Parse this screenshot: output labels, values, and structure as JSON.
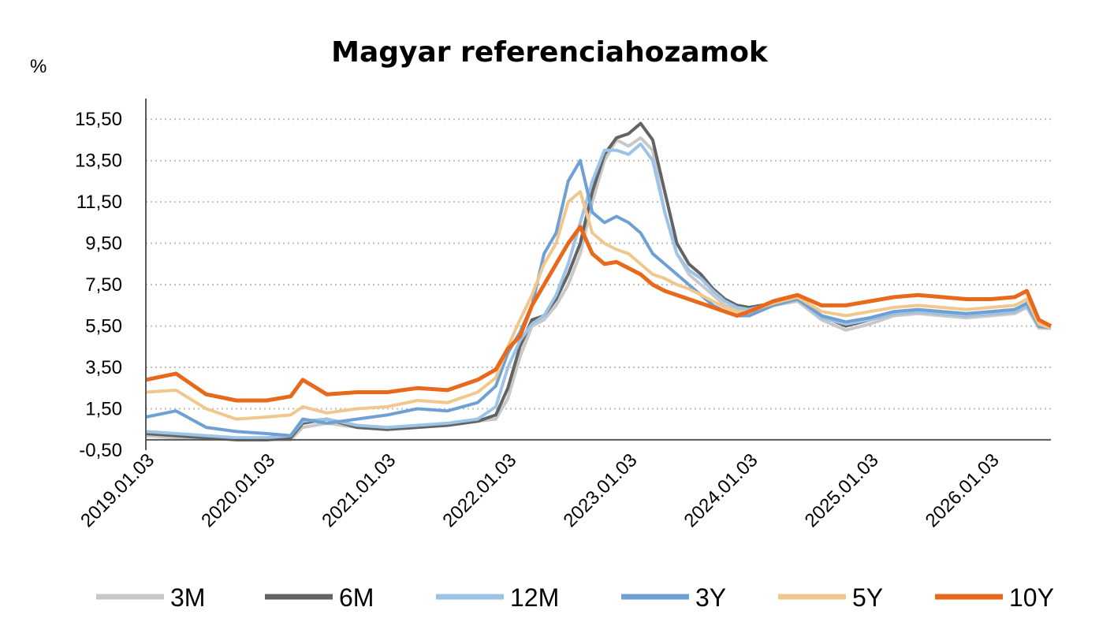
{
  "chart_data": {
    "type": "line",
    "title": "Magyar referenciahozamok",
    "ylabel": "%",
    "xlabel": "",
    "ylim": [
      -0.5,
      16.5
    ],
    "yticks": [
      "-0,50",
      "1,50",
      "3,50",
      "5,50",
      "7,50",
      "9,50",
      "11,50",
      "13,50",
      "15,50"
    ],
    "ytick_values": [
      -0.5,
      1.5,
      3.5,
      5.5,
      7.5,
      9.5,
      11.5,
      13.5,
      15.5
    ],
    "xticks": [
      "2019.01.03",
      "2020.01.03",
      "2021.01.03",
      "2022.01.03",
      "2023.01.03",
      "2024.01.03",
      "2025.01.03",
      "2026.01.03"
    ],
    "xtick_values": [
      2019.0,
      2020.0,
      2021.0,
      2022.0,
      2023.0,
      2024.0,
      2025.0,
      2026.0
    ],
    "xlim": [
      2019.0,
      2026.5
    ],
    "grid": true,
    "legend_position": "bottom",
    "series": [
      {
        "name": "3M",
        "color": "#c8c8c8",
        "x": [
          2019.0,
          2019.25,
          2019.5,
          2019.75,
          2020.0,
          2020.2,
          2020.3,
          2020.5,
          2020.75,
          2021.0,
          2021.25,
          2021.5,
          2021.75,
          2021.9,
          2022.0,
          2022.1,
          2022.2,
          2022.3,
          2022.4,
          2022.5,
          2022.6,
          2022.7,
          2022.8,
          2022.9,
          2023.0,
          2023.1,
          2023.2,
          2023.3,
          2023.4,
          2023.5,
          2023.6,
          2023.7,
          2023.8,
          2023.9,
          2024.0,
          2024.2,
          2024.4,
          2024.6,
          2024.8,
          2025.0,
          2025.2,
          2025.4,
          2025.6,
          2025.8,
          2026.0,
          2026.2,
          2026.3,
          2026.4,
          2026.5
        ],
        "y": [
          0.2,
          0.1,
          0.1,
          0.0,
          0.0,
          0.0,
          0.6,
          0.8,
          0.6,
          0.5,
          0.6,
          0.7,
          0.9,
          1.0,
          2.0,
          4.0,
          5.5,
          5.8,
          6.5,
          7.5,
          9.0,
          11.5,
          13.5,
          14.5,
          14.2,
          14.6,
          14.0,
          11.0,
          9.0,
          8.0,
          7.5,
          7.0,
          6.5,
          6.3,
          6.2,
          6.5,
          6.7,
          5.8,
          5.3,
          5.6,
          6.0,
          6.1,
          6.0,
          5.9,
          6.0,
          6.1,
          6.4,
          5.4,
          5.4
        ]
      },
      {
        "name": "6M",
        "color": "#636363",
        "x": [
          2019.0,
          2019.25,
          2019.5,
          2019.75,
          2020.0,
          2020.2,
          2020.3,
          2020.5,
          2020.75,
          2021.0,
          2021.25,
          2021.5,
          2021.75,
          2021.9,
          2022.0,
          2022.1,
          2022.2,
          2022.3,
          2022.4,
          2022.5,
          2022.6,
          2022.7,
          2022.8,
          2022.9,
          2023.0,
          2023.1,
          2023.2,
          2023.3,
          2023.4,
          2023.5,
          2023.6,
          2023.7,
          2023.8,
          2023.9,
          2024.0,
          2024.2,
          2024.4,
          2024.6,
          2024.8,
          2025.0,
          2025.2,
          2025.4,
          2025.6,
          2025.8,
          2026.0,
          2026.2,
          2026.3,
          2026.4,
          2026.5
        ],
        "y": [
          0.3,
          0.2,
          0.1,
          0.0,
          0.0,
          0.1,
          0.8,
          1.0,
          0.6,
          0.5,
          0.6,
          0.7,
          0.9,
          1.2,
          2.5,
          4.5,
          5.8,
          6.0,
          6.8,
          8.0,
          9.5,
          12.0,
          13.8,
          14.6,
          14.8,
          15.3,
          14.5,
          12.0,
          9.5,
          8.5,
          8.0,
          7.3,
          6.8,
          6.5,
          6.4,
          6.6,
          6.8,
          6.0,
          5.5,
          5.8,
          6.1,
          6.2,
          6.1,
          6.0,
          6.1,
          6.2,
          6.5,
          5.5,
          5.5
        ]
      },
      {
        "name": "12M",
        "color": "#9dc3e6",
        "x": [
          2019.0,
          2019.25,
          2019.5,
          2019.75,
          2020.0,
          2020.2,
          2020.3,
          2020.5,
          2020.75,
          2021.0,
          2021.25,
          2021.5,
          2021.75,
          2021.9,
          2022.0,
          2022.1,
          2022.2,
          2022.3,
          2022.4,
          2022.5,
          2022.6,
          2022.7,
          2022.8,
          2022.9,
          2023.0,
          2023.1,
          2023.2,
          2023.3,
          2023.4,
          2023.5,
          2023.6,
          2023.7,
          2023.8,
          2023.9,
          2024.0,
          2024.2,
          2024.4,
          2024.6,
          2024.8,
          2025.0,
          2025.2,
          2025.4,
          2025.6,
          2025.8,
          2026.0,
          2026.2,
          2026.3,
          2026.4,
          2026.5
        ],
        "y": [
          0.4,
          0.3,
          0.2,
          0.1,
          0.1,
          0.2,
          0.9,
          1.0,
          0.7,
          0.6,
          0.7,
          0.8,
          1.0,
          1.6,
          3.5,
          4.8,
          5.6,
          6.0,
          7.0,
          8.5,
          10.5,
          12.5,
          14.0,
          14.0,
          13.8,
          14.3,
          13.5,
          11.0,
          9.0,
          8.2,
          7.8,
          7.2,
          6.7,
          6.4,
          6.3,
          6.6,
          6.8,
          5.9,
          5.6,
          5.8,
          6.1,
          6.2,
          6.1,
          6.0,
          6.1,
          6.2,
          6.5,
          5.5,
          5.4
        ]
      },
      {
        "name": "3Y",
        "color": "#6fa0d3",
        "x": [
          2019.0,
          2019.25,
          2019.5,
          2019.75,
          2020.0,
          2020.2,
          2020.3,
          2020.5,
          2020.75,
          2021.0,
          2021.25,
          2021.5,
          2021.75,
          2021.9,
          2022.0,
          2022.1,
          2022.2,
          2022.3,
          2022.4,
          2022.5,
          2022.6,
          2022.7,
          2022.8,
          2022.9,
          2023.0,
          2023.1,
          2023.2,
          2023.3,
          2023.4,
          2023.5,
          2023.6,
          2023.7,
          2023.8,
          2023.9,
          2024.0,
          2024.2,
          2024.4,
          2024.6,
          2024.8,
          2025.0,
          2025.2,
          2025.4,
          2025.6,
          2025.8,
          2026.0,
          2026.2,
          2026.3,
          2026.4,
          2026.5
        ],
        "y": [
          1.1,
          1.4,
          0.6,
          0.4,
          0.3,
          0.2,
          1.0,
          0.8,
          1.0,
          1.2,
          1.5,
          1.4,
          1.8,
          2.6,
          4.2,
          5.2,
          6.5,
          9.0,
          10.0,
          12.5,
          13.5,
          11.0,
          10.5,
          10.8,
          10.5,
          10.0,
          9.0,
          8.5,
          8.0,
          7.5,
          7.0,
          6.5,
          6.2,
          6.0,
          6.0,
          6.5,
          6.8,
          6.0,
          5.7,
          5.9,
          6.2,
          6.3,
          6.2,
          6.1,
          6.2,
          6.3,
          6.6,
          5.5,
          5.4
        ]
      },
      {
        "name": "5Y",
        "color": "#f0c88e",
        "x": [
          2019.0,
          2019.25,
          2019.5,
          2019.75,
          2020.0,
          2020.2,
          2020.3,
          2020.5,
          2020.75,
          2021.0,
          2021.25,
          2021.5,
          2021.75,
          2021.9,
          2022.0,
          2022.1,
          2022.2,
          2022.3,
          2022.4,
          2022.5,
          2022.6,
          2022.7,
          2022.8,
          2022.9,
          2023.0,
          2023.1,
          2023.2,
          2023.3,
          2023.4,
          2023.5,
          2023.6,
          2023.7,
          2023.8,
          2023.9,
          2024.0,
          2024.2,
          2024.4,
          2024.6,
          2024.8,
          2025.0,
          2025.2,
          2025.4,
          2025.6,
          2025.8,
          2026.0,
          2026.2,
          2026.3,
          2026.4,
          2026.5
        ],
        "y": [
          2.3,
          2.4,
          1.5,
          1.0,
          1.1,
          1.2,
          1.6,
          1.3,
          1.5,
          1.6,
          1.9,
          1.8,
          2.3,
          3.0,
          4.5,
          5.8,
          7.0,
          8.5,
          9.5,
          11.5,
          12.0,
          10.0,
          9.5,
          9.2,
          9.0,
          8.5,
          8.0,
          7.8,
          7.5,
          7.3,
          7.0,
          6.7,
          6.4,
          6.2,
          6.2,
          6.6,
          6.9,
          6.2,
          6.0,
          6.2,
          6.4,
          6.5,
          6.4,
          6.3,
          6.4,
          6.5,
          6.8,
          5.6,
          5.4
        ]
      },
      {
        "name": "10Y",
        "color": "#e8681c",
        "x": [
          2019.0,
          2019.25,
          2019.5,
          2019.75,
          2020.0,
          2020.2,
          2020.3,
          2020.5,
          2020.75,
          2021.0,
          2021.25,
          2021.5,
          2021.75,
          2021.9,
          2022.0,
          2022.1,
          2022.2,
          2022.3,
          2022.4,
          2022.5,
          2022.6,
          2022.7,
          2022.8,
          2022.9,
          2023.0,
          2023.1,
          2023.2,
          2023.3,
          2023.4,
          2023.5,
          2023.6,
          2023.7,
          2023.8,
          2023.9,
          2024.0,
          2024.2,
          2024.4,
          2024.6,
          2024.8,
          2025.0,
          2025.2,
          2025.4,
          2025.6,
          2025.8,
          2026.0,
          2026.2,
          2026.3,
          2026.4,
          2026.5
        ],
        "y": [
          2.9,
          3.2,
          2.2,
          1.9,
          1.9,
          2.1,
          2.9,
          2.2,
          2.3,
          2.3,
          2.5,
          2.4,
          2.9,
          3.4,
          4.4,
          5.0,
          6.5,
          7.5,
          8.5,
          9.5,
          10.3,
          9.0,
          8.5,
          8.6,
          8.3,
          8.0,
          7.5,
          7.2,
          7.0,
          6.8,
          6.6,
          6.4,
          6.2,
          6.0,
          6.2,
          6.7,
          7.0,
          6.5,
          6.5,
          6.7,
          6.9,
          7.0,
          6.9,
          6.8,
          6.8,
          6.9,
          7.2,
          5.8,
          5.5
        ]
      }
    ]
  }
}
